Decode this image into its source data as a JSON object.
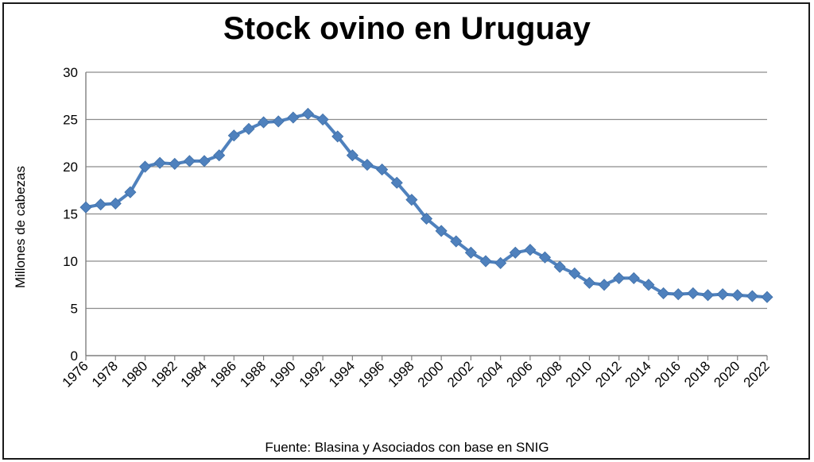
{
  "chart_data": {
    "type": "line",
    "title": "Stock ovino en Uruguay",
    "ylabel": "Millones de cabezas",
    "xlabel": "",
    "source": "Fuente: Blasina y Asociados con base en SNIG",
    "ylim": [
      0,
      30
    ],
    "yticks": [
      0,
      5,
      10,
      15,
      20,
      25,
      30
    ],
    "grid": true,
    "legend": "none",
    "x": [
      1976,
      1977,
      1978,
      1979,
      1980,
      1981,
      1982,
      1983,
      1984,
      1985,
      1986,
      1987,
      1988,
      1989,
      1990,
      1991,
      1992,
      1993,
      1994,
      1995,
      1996,
      1997,
      1998,
      1999,
      2000,
      2001,
      2002,
      2003,
      2004,
      2005,
      2006,
      2007,
      2008,
      2009,
      2010,
      2011,
      2012,
      2013,
      2014,
      2015,
      2016,
      2017,
      2018,
      2019,
      2020,
      2021,
      2022
    ],
    "xtick_labels": [
      "1976",
      "1978",
      "1980",
      "1982",
      "1984",
      "1986",
      "1988",
      "1990",
      "1992",
      "1994",
      "1996",
      "1998",
      "2000",
      "2002",
      "2004",
      "2006",
      "2008",
      "2010",
      "2012",
      "2014",
      "2016",
      "2018",
      "2020",
      "2022"
    ],
    "series": [
      {
        "values": [
          15.7,
          16.0,
          16.1,
          17.3,
          20.0,
          20.4,
          20.3,
          20.6,
          20.6,
          21.2,
          23.3,
          24.0,
          24.7,
          24.8,
          25.2,
          25.6,
          25.0,
          23.2,
          21.2,
          20.2,
          19.7,
          18.3,
          16.5,
          14.5,
          13.2,
          12.1,
          10.9,
          10.0,
          9.8,
          10.9,
          11.2,
          10.4,
          9.4,
          8.7,
          7.7,
          7.5,
          8.2,
          8.2,
          7.5,
          6.6,
          6.5,
          6.6,
          6.4,
          6.5,
          6.4,
          6.3,
          6.2
        ]
      }
    ],
    "colors": {
      "line": "#4f81bd",
      "marker": "#4f81bd",
      "grid": "#8c8c8c",
      "axis": "#7f7f7f"
    }
  }
}
